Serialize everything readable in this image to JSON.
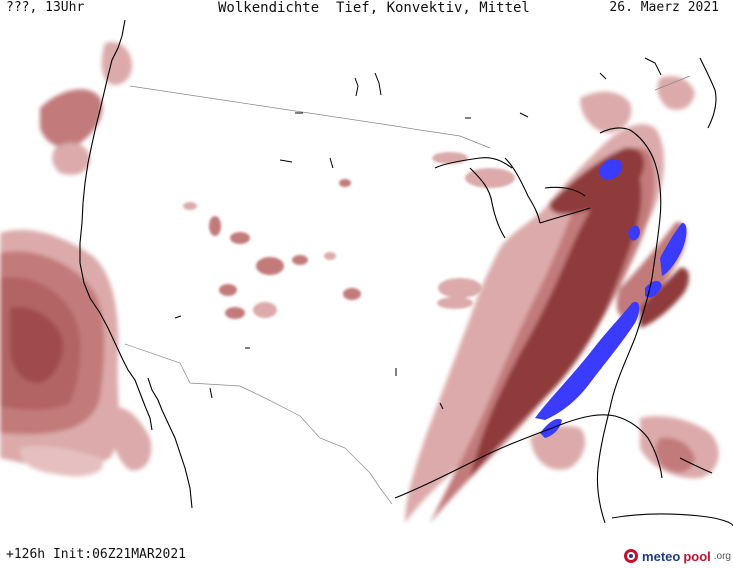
{
  "header": {
    "left": "???, 13Uhr",
    "center": "Wolkendichte  Tief, Konvektiv, Mittel",
    "right": "26. Maerz 2021"
  },
  "footer": {
    "init": "+126h  Init:06Z21MAR2021"
  },
  "logo": {
    "meteo": "meteo",
    "pool": "pool",
    "org": ".org"
  },
  "colors": {
    "cloud_light": "#dcaaaa",
    "cloud_mid": "#c27a7a",
    "cloud_dark": "#8f3a3a",
    "convective": "#3b3bff",
    "coast": "#000000",
    "border": "#888888",
    "logo_blue": "#1e3a8a",
    "logo_red": "#c8102e"
  }
}
